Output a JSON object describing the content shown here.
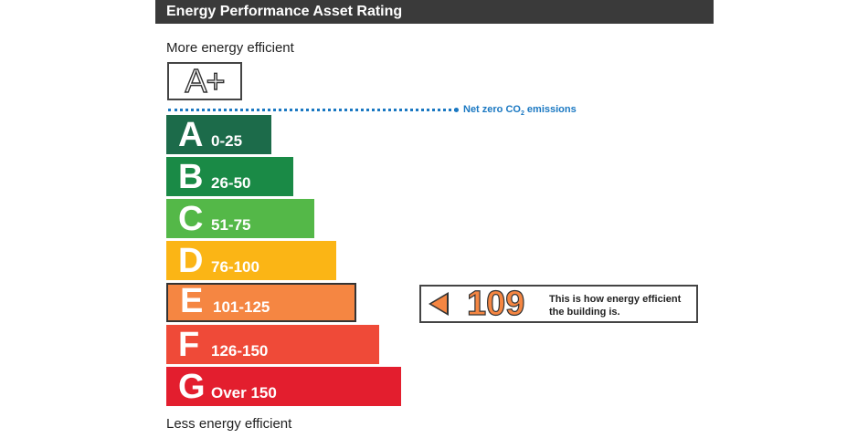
{
  "header": {
    "title": "Energy Performance Asset Rating"
  },
  "captions": {
    "top": "More energy efficient",
    "bottom": "Less energy efficient"
  },
  "aplus": {
    "label": "A+"
  },
  "net_zero": {
    "label": "Net zero CO",
    "subscript": "2",
    "suffix": " emissions",
    "color": "#1a78c2"
  },
  "bands": [
    {
      "letter": "A",
      "range": "0-25",
      "color": "#1c6b4a"
    },
    {
      "letter": "B",
      "range": "26-50",
      "color": "#1a8a46"
    },
    {
      "letter": "C",
      "range": "51-75",
      "color": "#54b848"
    },
    {
      "letter": "D",
      "range": "76-100",
      "color": "#fbb515"
    },
    {
      "letter": "E",
      "range": "101-125",
      "color": "#f58642",
      "current": true
    },
    {
      "letter": "F",
      "range": "126-150",
      "color": "#ef4a38"
    },
    {
      "letter": "G",
      "range": "Over 150",
      "color": "#e31e2e"
    }
  ],
  "indicator": {
    "score": "109",
    "line1": "This is how energy efficient",
    "line2": "the building is."
  }
}
